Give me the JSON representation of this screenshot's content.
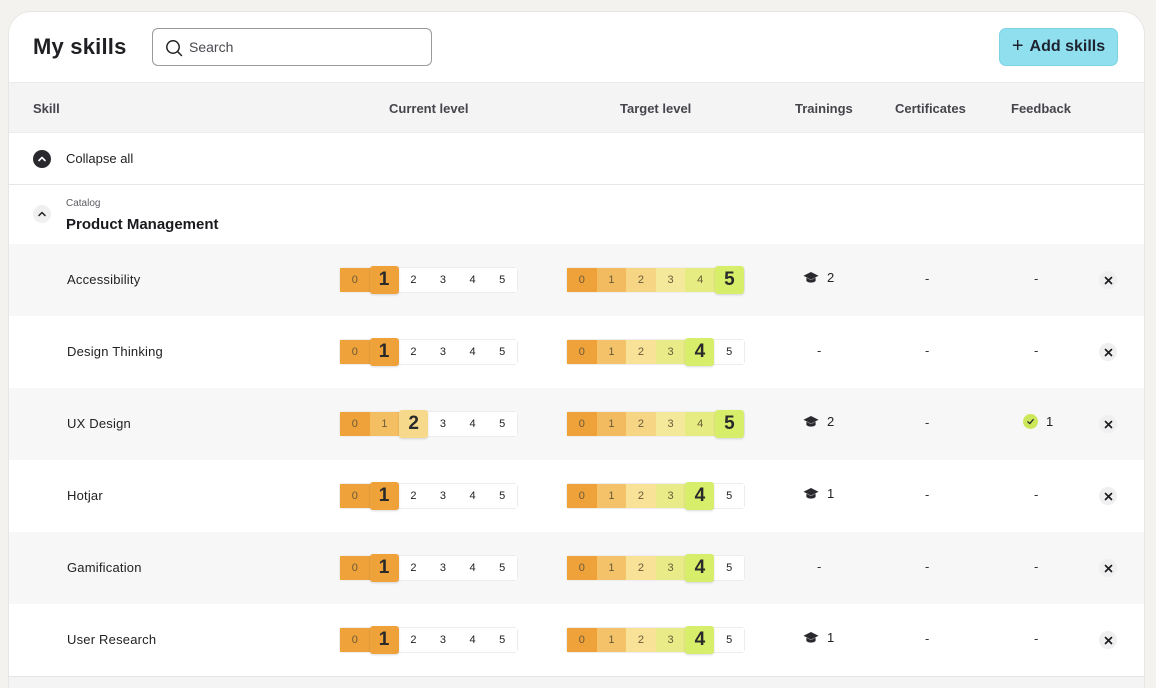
{
  "page": {
    "title": "My skills"
  },
  "search": {
    "placeholder": "Search",
    "value": ""
  },
  "actions": {
    "add_skills_label": "Add skills",
    "add_icon": "plus-icon"
  },
  "table": {
    "columns": {
      "skill": "Skill",
      "current_level": "Current level",
      "target_level": "Target level",
      "trainings": "Trainings",
      "certificates": "Certificates",
      "feedback": "Feedback"
    },
    "collapse_all_label": "Collapse all",
    "group": {
      "catalog_label": "Catalog",
      "name": "Product Management"
    },
    "level_scale": [
      "0",
      "1",
      "2",
      "3",
      "4",
      "5"
    ],
    "rows": [
      {
        "skill": "Accessibility",
        "current_level": 1,
        "target_level": 5,
        "trainings": "2",
        "certificates": "-",
        "feedback": "-",
        "feedback_icon": false
      },
      {
        "skill": "Design Thinking",
        "current_level": 1,
        "target_level": 4,
        "trainings": "-",
        "certificates": "-",
        "feedback": "-",
        "feedback_icon": false
      },
      {
        "skill": "UX Design",
        "current_level": 2,
        "target_level": 5,
        "trainings": "2",
        "certificates": "-",
        "feedback": "1",
        "feedback_icon": true
      },
      {
        "skill": "Hotjar",
        "current_level": 1,
        "target_level": 4,
        "trainings": "1",
        "certificates": "-",
        "feedback": "-",
        "feedback_icon": false
      },
      {
        "skill": "Gamification",
        "current_level": 1,
        "target_level": 4,
        "trainings": "-",
        "certificates": "-",
        "feedback": "-",
        "feedback_icon": false
      },
      {
        "skill": "User Research",
        "current_level": 1,
        "target_level": 4,
        "trainings": "1",
        "certificates": "-",
        "feedback": "-",
        "feedback_icon": false
      }
    ]
  },
  "colors": {
    "accent_button": "#8fdfef",
    "current_level_start": "#f0a23a",
    "current_level_end": "#f7d98a",
    "target_level_end": "#d7ee6a",
    "feedback_check": "#cce85a"
  }
}
